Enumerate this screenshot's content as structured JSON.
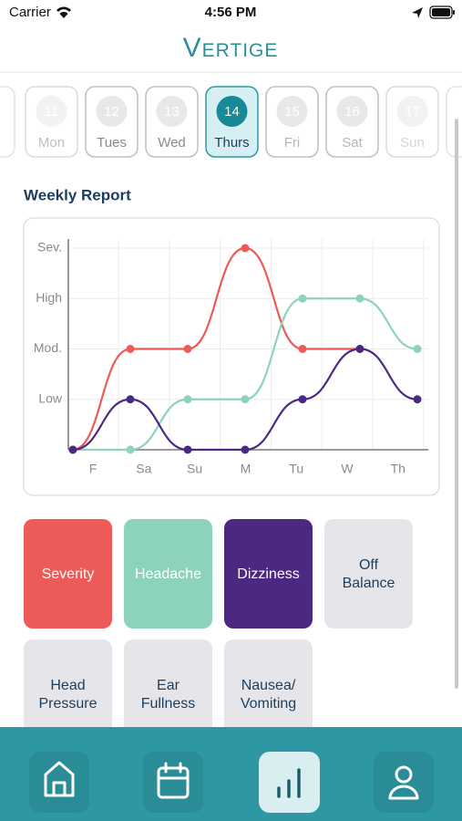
{
  "status_bar": {
    "carrier": "Carrier",
    "time": "4:56 PM"
  },
  "header": {
    "title": "Vertige"
  },
  "day_picker": {
    "days": [
      {
        "number": "11",
        "label": "Mon"
      },
      {
        "number": "12",
        "label": "Tues"
      },
      {
        "number": "13",
        "label": "Wed"
      },
      {
        "number": "14",
        "label": "Thurs"
      },
      {
        "number": "15",
        "label": "Fri"
      },
      {
        "number": "16",
        "label": "Sat"
      },
      {
        "number": "17",
        "label": "Sun"
      }
    ],
    "selected": 3
  },
  "section_title": "Weekly Report",
  "chart_data": {
    "type": "line",
    "categories": [
      "F",
      "Sa",
      "Su",
      "M",
      "Tu",
      "W",
      "Th"
    ],
    "ylim": [
      0,
      4
    ],
    "yticks": [
      {
        "value": 1,
        "label": "Low"
      },
      {
        "value": 2,
        "label": "Mod."
      },
      {
        "value": 3,
        "label": "High"
      },
      {
        "value": 4,
        "label": "Sev."
      }
    ],
    "grid": true,
    "series": [
      {
        "name": "Severity",
        "color": "#ec5b57",
        "values": [
          0,
          2,
          2,
          4,
          2,
          2,
          null
        ]
      },
      {
        "name": "Headache",
        "color": "#8dd3bb",
        "values": [
          0,
          0,
          1,
          1,
          3,
          3,
          2
        ]
      },
      {
        "name": "Dizziness",
        "color": "#4b2882",
        "values": [
          0,
          1,
          0,
          0,
          1,
          2,
          1
        ]
      }
    ]
  },
  "other_symptoms": [
    {
      "lines": [
        "Off",
        "Balance"
      ]
    },
    {
      "lines": [
        "Head",
        "Pressure"
      ]
    },
    {
      "lines": [
        "Ear",
        "Fullness"
      ]
    },
    {
      "lines": [
        "Nausea/",
        "Vomiting"
      ]
    }
  ]
}
